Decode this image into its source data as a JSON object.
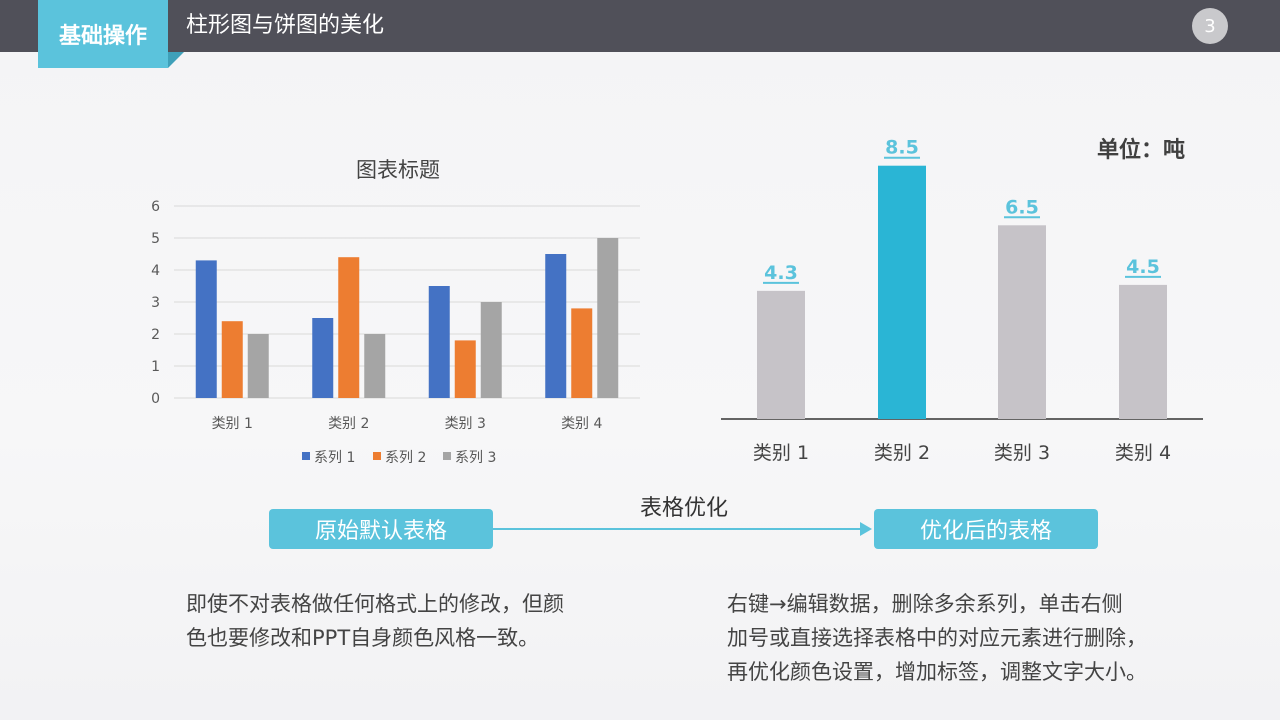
{
  "header": {
    "section": "基础操作",
    "title": "柱形图与饼图的美化",
    "page_number": "3"
  },
  "flow": {
    "left_label": "原始默认表格",
    "arrow_label": "表格优化",
    "right_label": "优化后的表格"
  },
  "descriptions": {
    "left": [
      "即使不对表格做任何格式上的修改，但颜",
      "色也要修改和PPT自身颜色风格一致。"
    ],
    "right": [
      "右键→编辑数据，删除多余系列，单击右侧",
      "加号或直接选择表格中的对应元素进行删除，",
      "再优化颜色设置，增加标签，调整文字大小。"
    ]
  },
  "colors": {
    "accent": "#5bc3dc",
    "series1": "#4472c4",
    "series2": "#ed7d31",
    "series3": "#a5a5a5",
    "gray_bar": "#c6c3c8",
    "highlight_bar": "#2ab5d5"
  },
  "chart_data": [
    {
      "type": "bar",
      "title": "图表标题",
      "categories": [
        "类别 1",
        "类别 2",
        "类别 3",
        "类别 4"
      ],
      "series": [
        {
          "name": "系列 1",
          "values": [
            4.3,
            2.5,
            3.5,
            4.5
          ]
        },
        {
          "name": "系列 2",
          "values": [
            2.4,
            4.4,
            1.8,
            2.8
          ]
        },
        {
          "name": "系列 3",
          "values": [
            2,
            2,
            3,
            5
          ]
        }
      ],
      "ylim": [
        0,
        6
      ],
      "yticks": [
        "0",
        "1",
        "2",
        "3",
        "4",
        "5",
        "6"
      ],
      "grid": true,
      "legend": "bottom"
    },
    {
      "type": "bar",
      "unit_label": "单位：吨",
      "categories": [
        "类别 1",
        "类别 2",
        "类别 3",
        "类别 4"
      ],
      "values": [
        4.3,
        8.5,
        6.5,
        4.5
      ],
      "data_labels": [
        "4.3",
        "8.5",
        "6.5",
        "4.5"
      ],
      "highlight_index": 1,
      "grid": false
    }
  ]
}
